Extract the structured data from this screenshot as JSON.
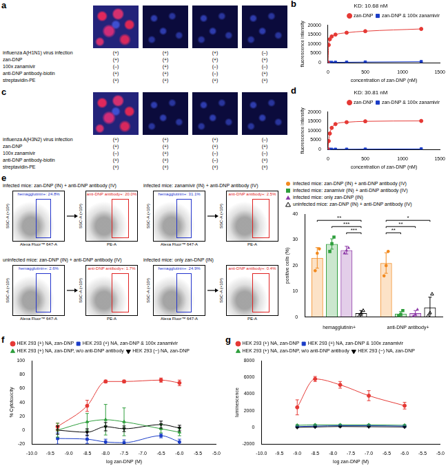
{
  "image_panels": [
    {
      "panel_label": "a",
      "rows": [
        {
          "label": "influenza A(H1N1) virus infection",
          "marks": [
            "(+)",
            "(+)",
            "(+)",
            "(–)"
          ]
        },
        {
          "label": "zan-DNP",
          "marks": [
            "(+)",
            "(+)",
            "(+)",
            "(+)"
          ]
        },
        {
          "label": "100x zanamivir",
          "marks": [
            "(–)",
            "(+)",
            "(–)",
            "(–)"
          ]
        },
        {
          "label": "anti-DNP antibody-biotin",
          "marks": [
            "(+)",
            "(+)",
            "(–)",
            "(+)"
          ]
        },
        {
          "label": "streptavidin-PE",
          "marks": [
            "(+)",
            "(+)",
            "(+)",
            "(+)"
          ]
        }
      ]
    },
    {
      "panel_label": "c",
      "rows": [
        {
          "label": "influenza A(H3N2) virus infection",
          "marks": [
            "(+)",
            "(+)",
            "(+)",
            "(–)"
          ]
        },
        {
          "label": "zan-DNP",
          "marks": [
            "(+)",
            "(+)",
            "(+)",
            "(+)"
          ]
        },
        {
          "label": "100x zanamivir",
          "marks": [
            "(–)",
            "(+)",
            "(–)",
            "(–)"
          ]
        },
        {
          "label": "anti-DNP antibody-biotin",
          "marks": [
            "(+)",
            "(+)",
            "(–)",
            "(+)"
          ]
        },
        {
          "label": "streptavidin-PE",
          "marks": [
            "(+)",
            "(+)",
            "(+)",
            "(+)"
          ]
        }
      ]
    }
  ],
  "flow_panels": {
    "panel_label": "e",
    "y_label": "SSC-A (×10³)",
    "plots": [
      {
        "title": "infected mice: zan-DNP (IN) + anti-DNP antibody (IV)",
        "gates": [
          {
            "label": "hemagglutinin+: 24.8%",
            "x_label": "Alexa Fluor™ 647-A",
            "color": "#2233cc"
          },
          {
            "label": "anti-DNP antibody+: 20.0%",
            "x_label": "PE-A",
            "color": "#e02020"
          }
        ]
      },
      {
        "title": "infected mice: zanamivir (IN) + anti-DNP antibody (IV)",
        "gates": [
          {
            "label": "hemagglutinin+: 31.1%",
            "x_label": "Alexa Fluor™ 647-A",
            "color": "#2233cc"
          },
          {
            "label": "anti-DNP antibody+: 2.5%",
            "x_label": "PE-A",
            "color": "#e02020"
          }
        ]
      },
      {
        "title": "uninfected mice: zan-DNP (IN) + anti-DNP antibody (IV)",
        "gates": [
          {
            "label": "hemagglutinin+: 2.6%",
            "x_label": "Alexa Fluor™ 647-A",
            "color": "#2233cc"
          },
          {
            "label": "anti-DNP antibody+: 1.7%",
            "x_label": "PE-A",
            "color": "#e02020"
          }
        ]
      },
      {
        "title": "infected mice: only zan-DNP (IN)",
        "gates": [
          {
            "label": "hemagglutinin+: 24.9%",
            "x_label": "Alexa Fluor™ 647-A",
            "color": "#2233cc"
          },
          {
            "label": "anti-DNP antibody+: 0.4%",
            "x_label": "PE-A",
            "color": "#e02020"
          }
        ]
      }
    ]
  },
  "chart_data": [
    {
      "panel_label": "b",
      "type": "line",
      "title": "KD: 10.68 nM",
      "x_label": "concentration of zan-DNP (nM)",
      "y_label": "fluorescence intensity",
      "x": [
        0,
        10,
        25,
        50,
        100,
        250,
        500,
        1250
      ],
      "xlim": [
        0,
        1500
      ],
      "xticks": [
        0,
        500,
        1000,
        1500
      ],
      "ylim": [
        0,
        20000
      ],
      "yticks": [
        0,
        5000,
        10000,
        15000,
        20000
      ],
      "grid": false,
      "legend": "top-right",
      "series": [
        {
          "name": "zan-DNP",
          "color": "#e53935",
          "marker": "circle",
          "values": [
            0,
            9500,
            12500,
            14000,
            15000,
            16000,
            16800,
            18000
          ]
        },
        {
          "name": "zan-DNP & 100x zanamivir",
          "color": "#1a3cc7",
          "marker": "square",
          "values": [
            0,
            100,
            150,
            200,
            250,
            300,
            400,
            600
          ]
        }
      ]
    },
    {
      "panel_label": "d",
      "type": "line",
      "title": "KD: 30.81 nM",
      "x_label": "concentration of zan-DNP (nM)",
      "y_label": "fluorescence intensity",
      "x": [
        0,
        10,
        25,
        50,
        100,
        250,
        500,
        1250
      ],
      "xlim": [
        0,
        1500
      ],
      "xticks": [
        0,
        500,
        1000,
        1500
      ],
      "ylim": [
        0,
        20000
      ],
      "yticks": [
        0,
        5000,
        10000,
        15000,
        20000
      ],
      "grid": false,
      "legend": "top-right",
      "series": [
        {
          "name": "zan-DNP",
          "color": "#e53935",
          "marker": "circle",
          "values": [
            0,
            4500,
            8500,
            11500,
            13500,
            14500,
            15000,
            15200
          ]
        },
        {
          "name": "zan-DNP & 100x zanamivir",
          "color": "#1a3cc7",
          "marker": "square",
          "values": [
            0,
            50,
            80,
            100,
            120,
            150,
            200,
            300
          ]
        }
      ]
    },
    {
      "type": "bar",
      "y_label": "positive cells (%)",
      "categories": [
        "hemagglutinin+",
        "anti-DNP antibody+"
      ],
      "ylim": [
        0,
        40
      ],
      "yticks": [
        0,
        10,
        20,
        30,
        40
      ],
      "grid": false,
      "legend": "top-right",
      "series": [
        {
          "name": "infected mice: zan-DNP (IN) + anti-DNP antibody (IV)",
          "color": "#f28a1e",
          "marker": "circle",
          "values": [
            23,
            21
          ],
          "errors": [
            4,
            4
          ],
          "points": [
            [
              18,
              24.8,
              26.5
            ],
            [
              16,
              20,
              25.5
            ]
          ]
        },
        {
          "name": "infected mice: zanamivir (IN) + anti-DNP antibody (IV)",
          "color": "#2e9e3c",
          "marker": "square",
          "values": [
            28.4,
            1.3
          ],
          "errors": [
            2,
            0.8
          ],
          "points": [
            [
              25.5,
              28.5,
              31.1
            ],
            [
              0.5,
              1,
              2.5
            ]
          ]
        },
        {
          "name": "infected mice: only zan-DNP (IN)",
          "color": "#8e3aa8",
          "marker": "triangle",
          "values": [
            26,
            1.5
          ],
          "errors": [
            1.5,
            1
          ],
          "points": [
            [
              24.9,
              26,
              27
            ],
            [
              0.4,
              1.2,
              3
            ]
          ]
        },
        {
          "name": "uninfected mice: zan-DNP (IN) + anti-DNP antibody (IV)",
          "color": "#000000",
          "marker": "triangle-open",
          "values": [
            1.5,
            3.7
          ],
          "errors": [
            1,
            4
          ],
          "points": [
            [
              0.5,
              1.5,
              2.6
            ],
            [
              0.5,
              1.7,
              9
            ]
          ]
        }
      ],
      "annotations": [
        {
          "category": 0,
          "from": 0,
          "to": 3,
          "label": "**"
        },
        {
          "category": 0,
          "from": 1,
          "to": 3,
          "label": "***"
        },
        {
          "category": 0,
          "from": 2,
          "to": 3,
          "label": "***"
        },
        {
          "category": 1,
          "from": 0,
          "to": 3,
          "label": "*"
        },
        {
          "category": 1,
          "from": 0,
          "to": 2,
          "label": "**"
        },
        {
          "category": 1,
          "from": 0,
          "to": 1,
          "label": "**"
        }
      ]
    },
    {
      "panel_label": "f",
      "type": "line",
      "x_label": "log zan-DNP (M)",
      "y_label": "% Cytotoxicity",
      "x": [
        -9.3,
        -8.5,
        -8,
        -7.5,
        -6.5,
        -6
      ],
      "xlim": [
        -10,
        -5
      ],
      "xticks": [
        {
          "value": -10,
          "label": "-10.0"
        },
        {
          "value": -9.5,
          "label": "-9.5"
        },
        {
          "value": -9,
          "label": "-9.0"
        },
        {
          "value": -8.5,
          "label": "-8.5"
        },
        {
          "value": -8,
          "label": "-8.0"
        },
        {
          "value": -7.5,
          "label": "-7.5"
        },
        {
          "value": -7,
          "label": "-7.0"
        },
        {
          "value": -6.5,
          "label": "-6.5"
        },
        {
          "value": -6,
          "label": "-6.0"
        },
        {
          "value": -5.5,
          "label": "-5.5"
        },
        {
          "value": -5,
          "label": "-5.0"
        }
      ],
      "ylim": [
        -20,
        100
      ],
      "yticks": [
        -20,
        0,
        20,
        40,
        60,
        80,
        100
      ],
      "grid": false,
      "legend": "top-left",
      "series": [
        {
          "name": "HEK 293 (+) NA, zan-DNP",
          "color": "#e53935",
          "marker": "circle",
          "values": [
            5,
            35,
            70,
            70,
            72,
            68
          ],
          "errors": [
            5,
            8,
            2,
            2,
            3,
            4
          ]
        },
        {
          "name": "HEK 293 (+) NA, zan-DNP & 100x zanamivir",
          "color": "#1a3cc7",
          "marker": "square",
          "values": [
            -12,
            -13,
            -17,
            -18,
            -8,
            -17
          ],
          "errors": [
            8,
            6,
            4,
            4,
            3,
            4
          ]
        },
        {
          "name": "HEK 293 (+) NA, zan-DNP, w/o anti-DNP antibody",
          "color": "#2e9e3c",
          "marker": "triangle",
          "values": [
            0,
            12,
            15,
            12,
            2,
            -3
          ],
          "errors": [
            10,
            12,
            22,
            20,
            6,
            5
          ]
        },
        {
          "name": "HEK 293 (−) NA, zan-DNP",
          "color": "#000000",
          "marker": "inverted-triangle",
          "values": [
            0,
            -3,
            5,
            2,
            8,
            3
          ],
          "errors": [
            6,
            5,
            6,
            4,
            5,
            4
          ]
        }
      ]
    },
    {
      "panel_label": "g",
      "type": "line",
      "x_label": "log zan-DNP (M)",
      "y_label": "luminescence",
      "x": [
        -9,
        -8.5,
        -7.8,
        -7,
        -6
      ],
      "xlim": [
        -10,
        -5
      ],
      "xticks": [
        {
          "value": -10,
          "label": "-10.0"
        },
        {
          "value": -9.5,
          "label": "-9.5"
        },
        {
          "value": -9,
          "label": "-9.0"
        },
        {
          "value": -8.5,
          "label": "-8.5"
        },
        {
          "value": -8,
          "label": "-8.0"
        },
        {
          "value": -7.5,
          "label": "-7.5"
        },
        {
          "value": -7,
          "label": "-7.0"
        },
        {
          "value": -6.5,
          "label": "-6.5"
        },
        {
          "value": -6,
          "label": "-6.0"
        },
        {
          "value": -5.5,
          "label": "-5.5"
        },
        {
          "value": -5,
          "label": "-5.0"
        }
      ],
      "ylim": [
        -2000,
        8000
      ],
      "yticks": [
        -2000,
        0,
        2000,
        4000,
        6000,
        8000
      ],
      "grid": false,
      "legend": "top-left",
      "series": [
        {
          "name": "HEK 293 (+) NA, zan-DNP",
          "color": "#e53935",
          "marker": "circle",
          "values": [
            2400,
            5800,
            5100,
            3800,
            2600
          ],
          "errors": [
            900,
            300,
            400,
            600,
            400
          ]
        },
        {
          "name": "HEK 293 (+) NA, zan-DNP & 100x zanamivir",
          "color": "#1a3cc7",
          "marker": "square",
          "values": [
            100,
            150,
            200,
            200,
            150
          ],
          "errors": [
            60,
            60,
            60,
            60,
            60
          ]
        },
        {
          "name": "HEK 293 (+) NA, zan-DNP, w/o anti-DNP antibody",
          "color": "#2e9e3c",
          "marker": "triangle",
          "values": [
            250,
            300,
            300,
            300,
            250
          ],
          "errors": [
            80,
            80,
            80,
            80,
            80
          ]
        },
        {
          "name": "HEK 293 (−) NA, zan-DNP",
          "color": "#000000",
          "marker": "inverted-triangle",
          "values": [
            0,
            50,
            100,
            80,
            50
          ],
          "errors": [
            60,
            60,
            60,
            60,
            60
          ]
        }
      ]
    }
  ]
}
